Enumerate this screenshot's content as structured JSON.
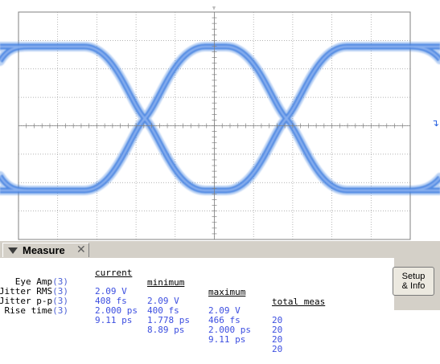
{
  "measure": {
    "tab_label": "Measure",
    "close_glyph": "✕",
    "columns": [
      "current",
      "minimum",
      "maximum",
      "total meas"
    ],
    "rows": [
      {
        "name": "Eye Amp",
        "source": "(3)",
        "current": "2.09 V",
        "minimum": "2.09 V",
        "maximum": "2.09 V",
        "total": "20"
      },
      {
        "name": "Jitter RMS",
        "source": "(3)",
        "current": "408 fs",
        "minimum": "400 fs",
        "maximum": "466 fs",
        "total": "20"
      },
      {
        "name": "Jitter p-p",
        "source": "(3)",
        "current": "2.000 ps",
        "minimum": "1.778 ps",
        "maximum": "2.000 ps",
        "total": "20"
      },
      {
        "name": "Rise time",
        "source": "(3)",
        "current": "9.11 ps",
        "minimum": "8.89 ps",
        "maximum": "9.11 ps",
        "total": "20"
      }
    ],
    "setup_button": {
      "line1": "Setup",
      "line2": "& Info"
    }
  },
  "scope": {
    "trace_color": "#3f7fe0",
    "trigger_marker": "↴"
  }
}
